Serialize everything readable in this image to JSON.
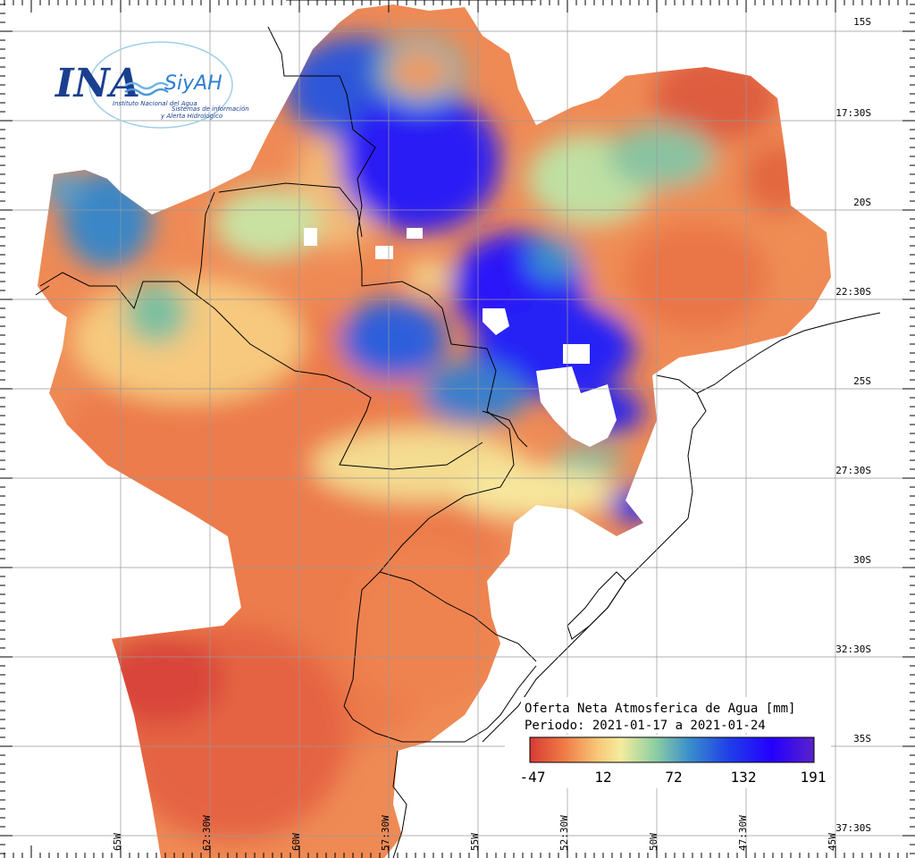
{
  "logo": {
    "primary": "INA",
    "secondary": "SiyAH",
    "institute": "Instituto Nacional del Agua",
    "system_line1": "Sistemas de información",
    "system_line2": "y Alerta Hidrológico"
  },
  "legend": {
    "title_line1": "Oferta Neta Atmosferica de Agua [mm]",
    "title_line2": "Periodo: 2021-01-17 a 2021-01-24",
    "ticks": [
      "-47",
      "12",
      "72",
      "132",
      "191"
    ],
    "colors": [
      "#d73b34",
      "#f08a4b",
      "#f5b96b",
      "#f4e99a",
      "#8fcfa2",
      "#2f8fc9",
      "#1f3fe0",
      "#2a00ff",
      "#4a1fd0"
    ]
  },
  "map": {
    "lat_labels": [
      "15S",
      "17:30S",
      "20S",
      "22:30S",
      "25S",
      "27:30S",
      "30S",
      "32:30S",
      "35S",
      "37:30S"
    ],
    "lon_labels": [
      "65W",
      "62:30W",
      "60W",
      "57:30W",
      "55W",
      "52:30W",
      "50W",
      "47:30W",
      "45W"
    ]
  }
}
